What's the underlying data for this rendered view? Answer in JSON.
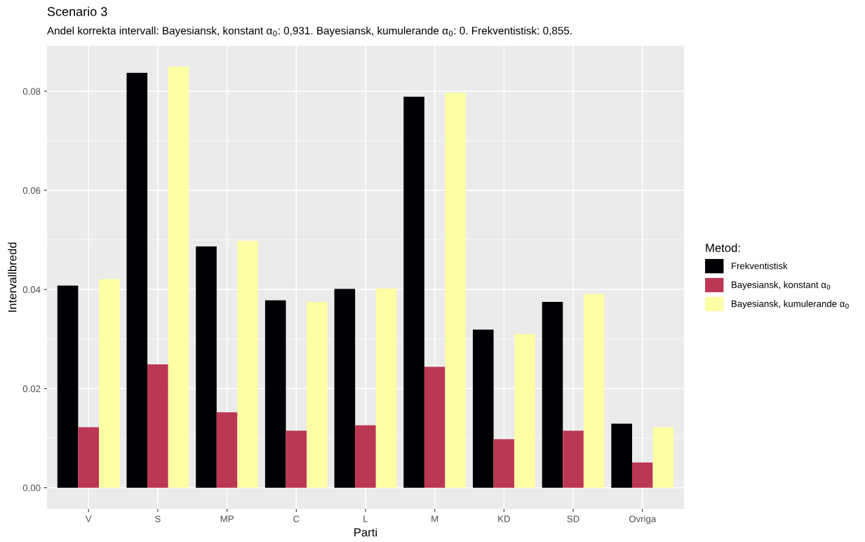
{
  "chart_data": {
    "type": "bar",
    "title": "Scenario 3",
    "subtitle": "Andel korrekta intervall: Bayesiansk, konstant α$_{0}$: 0,931. Bayesiansk, kumulerande α$_{0}$: 0. Frekventistisk: 0,855.",
    "xlabel": "Parti",
    "ylabel": "Intervallbredd",
    "legend_title": "Metod:",
    "categories": [
      "V",
      "S",
      "MP",
      "C",
      "L",
      "M",
      "KD",
      "SD",
      "Ovriga"
    ],
    "series": [
      {
        "name": "Frekventistisk",
        "color": "#000004",
        "values": [
          0.0408,
          0.0837,
          0.0487,
          0.0378,
          0.0401,
          0.0789,
          0.0319,
          0.0375,
          0.0129
        ]
      },
      {
        "name": "Bayesiansk, konstant α$_{0}$",
        "color": "#bb3754",
        "values": [
          0.0122,
          0.0249,
          0.0152,
          0.0115,
          0.0126,
          0.0244,
          0.0098,
          0.0115,
          0.0051
        ]
      },
      {
        "name": "Bayesiansk, kumulerande α$_{0}$",
        "color": "#fcffa4",
        "values": [
          0.0421,
          0.085,
          0.0498,
          0.0375,
          0.0402,
          0.0797,
          0.031,
          0.0391,
          0.0122
        ]
      }
    ],
    "ylim": [
      -0.0043,
      0.0892
    ],
    "yticks": [
      {
        "value": 0,
        "label": "0.00"
      },
      {
        "value": 0.02,
        "label": "0.02"
      },
      {
        "value": 0.04,
        "label": "0.04"
      },
      {
        "value": 0.06,
        "label": "0.06"
      },
      {
        "value": 0.08,
        "label": "0.08"
      }
    ],
    "grid": true,
    "legend": "right"
  }
}
